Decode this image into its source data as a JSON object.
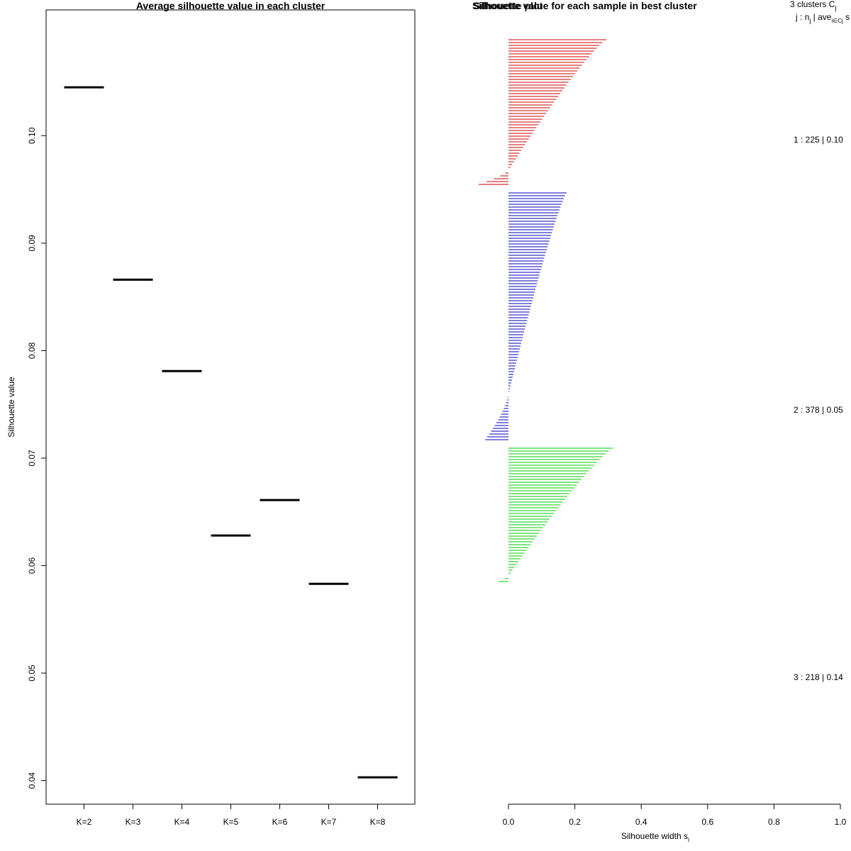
{
  "chart_data": [
    {
      "type": "scatter",
      "marker": "horizontal-segment",
      "title": "Average silhouette value in each cluster",
      "xlabel": "",
      "ylabel": "Silhouette value",
      "categories": [
        "K=2",
        "K=3",
        "K=4",
        "K=5",
        "K=6",
        "K=7",
        "K=8"
      ],
      "values": [
        0.1045,
        0.0866,
        0.0781,
        0.0628,
        0.0661,
        0.0583,
        0.0403
      ],
      "yticks": [
        "0.04",
        "0.05",
        "0.06",
        "0.07",
        "0.08",
        "0.09",
        "0.10"
      ],
      "ylim": [
        0.0378,
        0.1117
      ],
      "color": "#000000"
    },
    {
      "type": "bar",
      "orientation": "horizontal",
      "title": "Silhouette value for each sample in best cluster",
      "title_overlap": "Silhouette plot",
      "xlabel": "Silhouette width s",
      "xlabel_sub": "i",
      "xlim": [
        0,
        1
      ],
      "xticks": [
        "0.0",
        "0.2",
        "0.4",
        "0.6",
        "0.8",
        "1.0"
      ],
      "legend_header_line1": "3  clusters  C",
      "legend_header_line1_sub": "j",
      "legend_header_line2": "j :  n",
      "legend_header_line2_sub": "j",
      "legend_header_line2_mid": " | ave",
      "legend_header_line2_sub2": "i∈Cj",
      "legend_header_line2_end": "  s",
      "clusters": [
        {
          "id": 1,
          "label": "1 :   225  |  0.10",
          "n": 225,
          "color": "#cc0000",
          "max": 0.295,
          "neg_count": 5,
          "neg_min": -0.09,
          "bars": 52
        },
        {
          "id": 2,
          "label": "2 :   378  |  0.05",
          "n": 378,
          "color": "#0000bb",
          "max": 0.175,
          "neg_count": 16,
          "neg_min": -0.07,
          "bars": 88
        },
        {
          "id": 3,
          "label": "3 :   218  |  0.14",
          "n": 218,
          "color": "#00cc00",
          "max": 0.315,
          "neg_count": 2,
          "neg_min": -0.03,
          "bars": 48
        }
      ]
    }
  ]
}
